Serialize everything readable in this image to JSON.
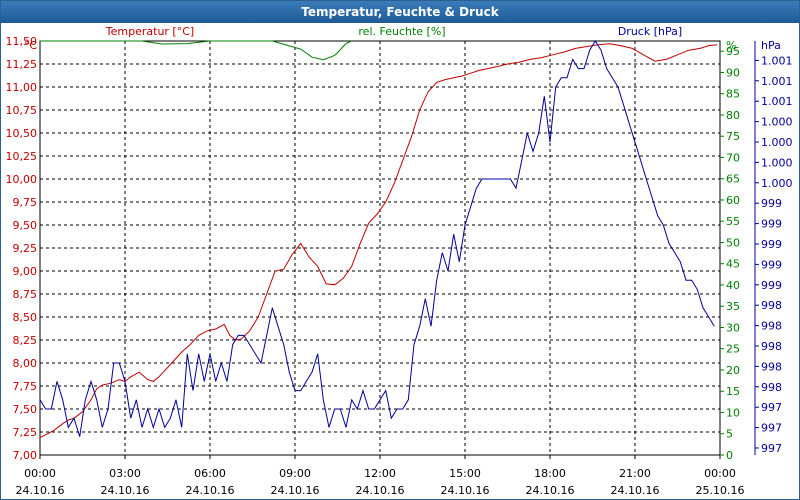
{
  "window": {
    "title": "Temperatur, Feuchte & Druck"
  },
  "colors": {
    "temperature": "#c00000",
    "humidity": "#008000",
    "pressure": "#000099",
    "grid": "#000000",
    "titlebar": "#2b6aa8"
  },
  "chart_data": {
    "type": "line",
    "title": "Temperatur, Feuchte & Druck",
    "grid": true,
    "x_ticks": [
      {
        "time": "00:00",
        "date": "24.10.16"
      },
      {
        "time": "03:00",
        "date": "24.10.16"
      },
      {
        "time": "06:00",
        "date": "24.10.16"
      },
      {
        "time": "09:00",
        "date": "24.10.16"
      },
      {
        "time": "12:00",
        "date": "24.10.16"
      },
      {
        "time": "15:00",
        "date": "24.10.16"
      },
      {
        "time": "18:00",
        "date": "24.10.16"
      },
      {
        "time": "21:00",
        "date": "24.10.16"
      },
      {
        "time": "00:00",
        "date": "25.10.16"
      }
    ],
    "axes": {
      "temperature": {
        "label": "Temperatur [°C]",
        "unit": "°C",
        "ylim": [
          7.0,
          11.5
        ],
        "ticks": [
          "7,00",
          "7,25",
          "7,50",
          "7,75",
          "8,00",
          "8,25",
          "8,50",
          "8,75",
          "9,00",
          "9,25",
          "9,50",
          "9,75",
          "10,00",
          "10,25",
          "10,50",
          "10,75",
          "11,00",
          "11,25",
          "11,50"
        ]
      },
      "humidity": {
        "label": "rel. Feuchte [%]",
        "unit": "%",
        "ylim": [
          0,
          97.4
        ],
        "ticks": [
          "0",
          "5",
          "10",
          "15",
          "20",
          "25",
          "30",
          "35",
          "40",
          "45",
          "50",
          "55",
          "60",
          "65",
          "70",
          "75",
          "80",
          "85",
          "90",
          "95"
        ]
      },
      "pressure": {
        "label": "Druck [hPa]",
        "unit": "hPa",
        "ylim": [
          997.0,
          1001.5
        ],
        "ticks": [
          "997",
          "997",
          "997",
          "998",
          "998",
          "998",
          "998",
          "998",
          "999",
          "999",
          "999",
          "999",
          "999",
          "1.000",
          "1.000",
          "1.000",
          "1.000",
          "1.001",
          "1.001",
          "1.001"
        ]
      }
    },
    "series": [
      {
        "name": "Temperatur [°C]",
        "axis": "temperature",
        "x": [
          0,
          0.2,
          0.5,
          0.8,
          1,
          1.2,
          1.5,
          1.8,
          2,
          2.2,
          2.5,
          2.8,
          3,
          3.2,
          3.5,
          3.8,
          4,
          4.2,
          4.5,
          4.8,
          5,
          5.3,
          5.6,
          5.9,
          6.2,
          6.5,
          6.7,
          6.9,
          7.1,
          7.4,
          7.7,
          8,
          8.3,
          8.6,
          8.9,
          9.2,
          9.5,
          9.8,
          10.1,
          10.4,
          10.7,
          11,
          11.3,
          11.6,
          11.9,
          12.2,
          12.5,
          12.8,
          13.1,
          13.4,
          13.7,
          14,
          14.3,
          14.6,
          14.9,
          15.2,
          15.5,
          15.8,
          16.1,
          16.5,
          16.9,
          17.3,
          17.7,
          18.1,
          18.5,
          18.9,
          19.3,
          19.7,
          20.1,
          20.5,
          20.9,
          21.3,
          21.7,
          22.1,
          22.5,
          22.9,
          23.3,
          23.6,
          23.9
        ],
        "y": [
          7.19,
          7.22,
          7.27,
          7.34,
          7.38,
          7.4,
          7.47,
          7.6,
          7.72,
          7.76,
          7.78,
          7.82,
          7.8,
          7.85,
          7.9,
          7.82,
          7.8,
          7.85,
          7.95,
          8.05,
          8.12,
          8.2,
          8.3,
          8.35,
          8.37,
          8.42,
          8.3,
          8.25,
          8.26,
          8.35,
          8.5,
          8.75,
          9.0,
          9.02,
          9.18,
          9.3,
          9.15,
          9.05,
          8.86,
          8.85,
          8.92,
          9.05,
          9.3,
          9.52,
          9.62,
          9.75,
          9.95,
          10.2,
          10.45,
          10.75,
          10.95,
          11.05,
          11.08,
          11.1,
          11.12,
          11.15,
          11.18,
          11.2,
          11.22,
          11.25,
          11.27,
          11.3,
          11.32,
          11.35,
          11.38,
          11.42,
          11.44,
          11.46,
          11.47,
          11.45,
          11.42,
          11.35,
          11.28,
          11.3,
          11.35,
          11.4,
          11.42,
          11.45,
          11.46
        ]
      },
      {
        "name": "rel. Feuchte [%]",
        "axis": "humidity",
        "x": [
          0,
          3.6,
          4.3,
          5.2,
          6,
          8.2,
          9.2,
          9.6,
          10,
          10.4,
          10.8,
          11
        ],
        "y": [
          97.4,
          97.4,
          96.7,
          96.8,
          97.4,
          97.4,
          95.5,
          93.6,
          93,
          94,
          96.8,
          97.4
        ]
      },
      {
        "name": "Druck [hPa]",
        "axis": "pressure",
        "x": [
          0,
          0.2,
          0.4,
          0.6,
          0.8,
          1,
          1.2,
          1.4,
          1.6,
          1.8,
          2,
          2.2,
          2.4,
          2.6,
          2.8,
          3,
          3.2,
          3.4,
          3.6,
          3.8,
          4,
          4.2,
          4.4,
          4.6,
          4.8,
          5,
          5.2,
          5.4,
          5.6,
          5.8,
          6,
          6.2,
          6.4,
          6.6,
          6.8,
          7,
          7.2,
          7.4,
          7.6,
          7.8,
          8,
          8.2,
          8.4,
          8.6,
          8.8,
          9,
          9.2,
          9.4,
          9.6,
          9.8,
          10,
          10.2,
          10.4,
          10.6,
          10.8,
          11,
          11.2,
          11.4,
          11.6,
          11.8,
          12,
          12.2,
          12.4,
          12.6,
          12.8,
          13,
          13.2,
          13.4,
          13.6,
          13.8,
          14,
          14.2,
          14.4,
          14.6,
          14.8,
          15,
          15.2,
          15.4,
          15.6,
          15.8,
          16,
          16.2,
          16.4,
          16.6,
          16.8,
          17,
          17.2,
          17.4,
          17.6,
          17.8,
          18,
          18.2,
          18.4,
          18.6,
          18.8,
          19,
          19.2,
          19.4,
          19.6,
          19.8,
          20,
          20.2,
          20.4,
          20.6,
          20.8,
          21,
          21.2,
          21.4,
          21.6,
          21.8,
          22,
          22.2,
          22.4,
          22.6,
          22.8,
          23,
          23.2,
          23.4,
          23.6,
          23.8
        ],
        "y": [
          997.6,
          997.5,
          997.5,
          997.8,
          997.6,
          997.3,
          997.4,
          997.2,
          997.6,
          997.8,
          997.6,
          997.3,
          997.5,
          998.0,
          998.0,
          997.8,
          997.4,
          997.6,
          997.3,
          997.5,
          997.3,
          997.5,
          997.3,
          997.4,
          997.6,
          997.3,
          998.1,
          997.7,
          998.1,
          997.8,
          998.1,
          997.8,
          998.0,
          997.8,
          998.2,
          998.3,
          998.3,
          998.2,
          998.1,
          998.0,
          998.3,
          998.6,
          998.4,
          998.2,
          997.9,
          997.7,
          997.7,
          997.8,
          997.9,
          998.1,
          997.6,
          997.3,
          997.5,
          997.5,
          997.3,
          997.6,
          997.5,
          997.7,
          997.5,
          997.5,
          997.6,
          997.7,
          997.4,
          997.5,
          997.5,
          997.6,
          998.2,
          998.4,
          998.7,
          998.4,
          998.9,
          999.2,
          999.0,
          999.4,
          999.1,
          999.5,
          999.7,
          999.9,
          1000.0,
          1000.0,
          1000.0,
          1000.0,
          1000.0,
          1000.0,
          999.9,
          1000.2,
          1000.5,
          1000.3,
          1000.5,
          1000.9,
          1000.4,
          1001.0,
          1001.1,
          1001.1,
          1001.3,
          1001.2,
          1001.2,
          1001.4,
          1001.5,
          1001.4,
          1001.2,
          1001.1,
          1001.0,
          1000.8,
          1000.6,
          1000.4,
          1000.2,
          1000.0,
          999.8,
          999.6,
          999.5,
          999.3,
          999.2,
          999.1,
          998.9,
          998.9,
          998.8,
          998.6,
          998.5,
          998.4
        ]
      }
    ]
  }
}
